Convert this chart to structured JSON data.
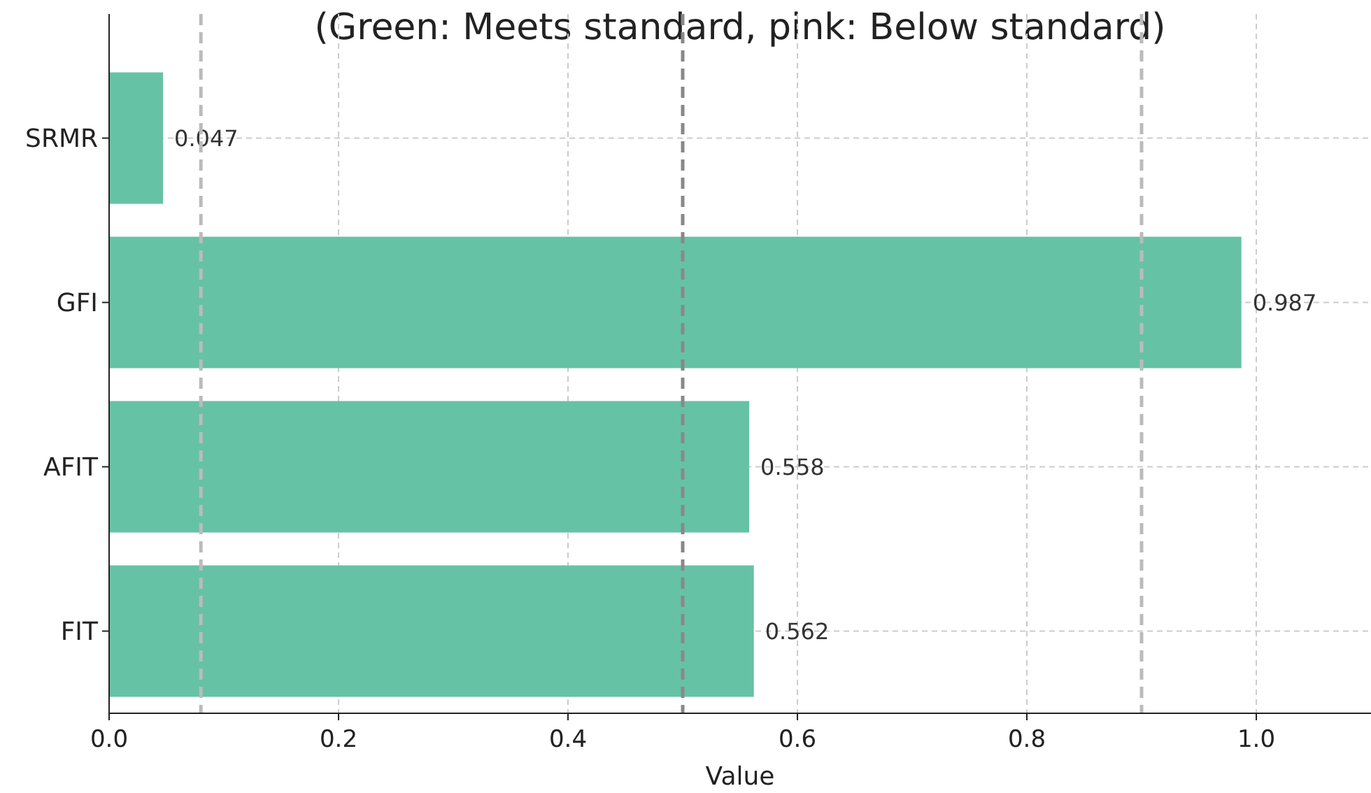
{
  "chart_data": {
    "type": "bar",
    "orientation": "horizontal",
    "title": "(Green: Meets standard, pink: Below standard)",
    "xlabel": "Value",
    "categories": [
      "SRMR",
      "GFI",
      "AFIT",
      "FIT"
    ],
    "values": [
      0.047,
      0.987,
      0.558,
      0.562
    ],
    "color": "#66c2a5",
    "data_labels": true,
    "xlim": [
      0,
      1.1
    ],
    "xticks": [
      {
        "value": 0,
        "label": "0.0"
      },
      0.2,
      0.4,
      0.6,
      0.8,
      {
        "value": 1,
        "label": "1.0"
      }
    ],
    "grid": true,
    "ref_lines": [
      {
        "axis": "x",
        "value": 0.08,
        "color": "#bbbbbb",
        "line_style": "dashed"
      },
      {
        "axis": "x",
        "value": 0.5,
        "color": "#888888",
        "line_style": "dashed"
      },
      {
        "axis": "x",
        "value": 0.9,
        "color": "#bbbbbb",
        "line_style": "dashed"
      }
    ]
  }
}
